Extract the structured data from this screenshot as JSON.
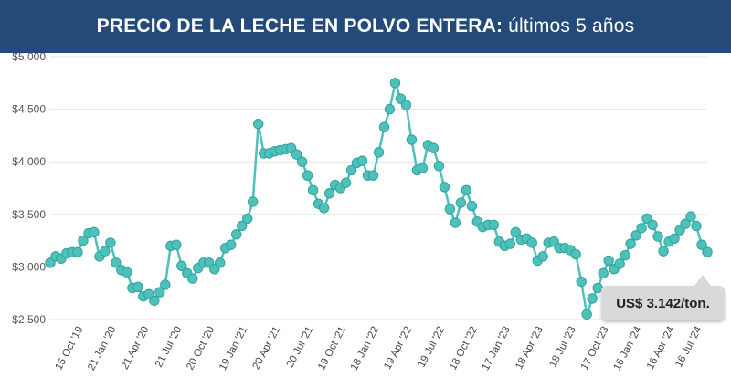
{
  "header": {
    "title_bold": "PRECIO DE LA LECHE EN POLVO ENTERA:",
    "title_light": "últimos 5 años"
  },
  "callout": {
    "label": "US$ 3.142/ton."
  },
  "colors": {
    "title_bg": "#234a78",
    "line": "#4dc1ba",
    "marker_stroke": "#2fa39c",
    "grid": "#e3e3e3"
  },
  "chart_data": {
    "type": "line",
    "title": "PRECIO DE LA LECHE EN POLVO ENTERA: últimos 5 años",
    "xlabel": "",
    "ylabel": "",
    "ylim": [
      2500,
      5000
    ],
    "grid": true,
    "y_ticks": [
      {
        "value": 5000,
        "label": "$5,000"
      },
      {
        "value": 4500,
        "label": "$4,500"
      },
      {
        "value": 4000,
        "label": "$4,000"
      },
      {
        "value": 3500,
        "label": "$3,500"
      },
      {
        "value": 3000,
        "label": "$3,000"
      },
      {
        "value": 2500,
        "label": "$2,500"
      }
    ],
    "x_ticks": [
      {
        "index": 6,
        "label": "15 Oct '19"
      },
      {
        "index": 12,
        "label": "21 Jan '20"
      },
      {
        "index": 18,
        "label": "21 Apr '20"
      },
      {
        "index": 24,
        "label": "21 Jul '20"
      },
      {
        "index": 30,
        "label": "20 Oct '20"
      },
      {
        "index": 36,
        "label": "19 Jan '21"
      },
      {
        "index": 42,
        "label": "20 Apr '21"
      },
      {
        "index": 48,
        "label": "20 Jul '21"
      },
      {
        "index": 54,
        "label": "19 Oct '21"
      },
      {
        "index": 60,
        "label": "18 Jan '22"
      },
      {
        "index": 66,
        "label": "19 Apr '22"
      },
      {
        "index": 72,
        "label": "19 Jul '22"
      },
      {
        "index": 78,
        "label": "18 Oct '22"
      },
      {
        "index": 84,
        "label": "17 Jan '23"
      },
      {
        "index": 90,
        "label": "18 Apr '23"
      },
      {
        "index": 96,
        "label": "18 Jul '23"
      },
      {
        "index": 102,
        "label": "17 Oct '23"
      },
      {
        "index": 108,
        "label": "16 Jan '24"
      },
      {
        "index": 114,
        "label": "16 Apr '24"
      },
      {
        "index": 119,
        "label": "16 Jul '24"
      }
    ],
    "series": [
      {
        "name": "Precio leche en polvo entera (US$/ton)",
        "values": [
          3040,
          3100,
          3080,
          3130,
          3140,
          3140,
          3250,
          3320,
          3330,
          3100,
          3150,
          3230,
          3040,
          2970,
          2950,
          2800,
          2810,
          2720,
          2740,
          2680,
          2760,
          2830,
          3200,
          3210,
          3010,
          2940,
          2890,
          2990,
          3040,
          3040,
          2980,
          3040,
          3180,
          3210,
          3310,
          3390,
          3460,
          3620,
          4360,
          4080,
          4080,
          4100,
          4110,
          4120,
          4130,
          4070,
          4000,
          3870,
          3730,
          3600,
          3560,
          3700,
          3780,
          3750,
          3800,
          3920,
          3990,
          4010,
          3870,
          3870,
          4090,
          4330,
          4500,
          4750,
          4600,
          4540,
          4210,
          3920,
          3940,
          4160,
          4130,
          3960,
          3760,
          3550,
          3420,
          3610,
          3730,
          3580,
          3430,
          3380,
          3400,
          3400,
          3240,
          3200,
          3220,
          3330,
          3260,
          3270,
          3230,
          3060,
          3100,
          3230,
          3240,
          3180,
          3180,
          3160,
          3120,
          2860,
          2550,
          2700,
          2800,
          2940,
          3060,
          2980,
          3030,
          3110,
          3220,
          3300,
          3370,
          3460,
          3400,
          3290,
          3150,
          3240,
          3270,
          3350,
          3410,
          3480,
          3390,
          3210,
          3142
        ]
      }
    ]
  }
}
